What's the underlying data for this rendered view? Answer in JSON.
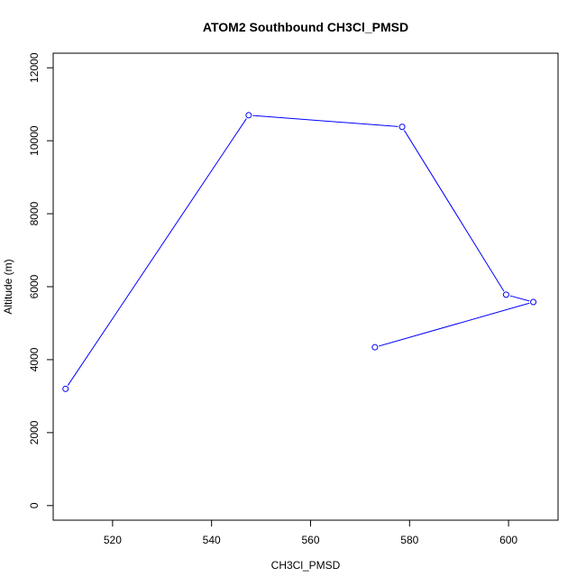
{
  "chart_data": {
    "type": "line",
    "title": "ATOM2 Southbound CH3Cl_PMSD",
    "xlabel": "CH3Cl_PMSD",
    "ylabel": "Altitude (m)",
    "xlim": [
      508,
      610
    ],
    "ylim": [
      -400,
      12400
    ],
    "x_ticks": [
      520,
      540,
      560,
      580,
      600
    ],
    "y_ticks": [
      0,
      2000,
      4000,
      6000,
      8000,
      10000,
      12000
    ],
    "grid": false,
    "series": [
      {
        "color": "#0000ff",
        "marker": "open-circle",
        "points": [
          {
            "x": 510.5,
            "y": 3200
          },
          {
            "x": 547.5,
            "y": 10700
          },
          {
            "x": 578.5,
            "y": 10380
          },
          {
            "x": 599.5,
            "y": 5780
          },
          {
            "x": 605.0,
            "y": 5580
          },
          {
            "x": 573.0,
            "y": 4340
          }
        ]
      }
    ]
  }
}
